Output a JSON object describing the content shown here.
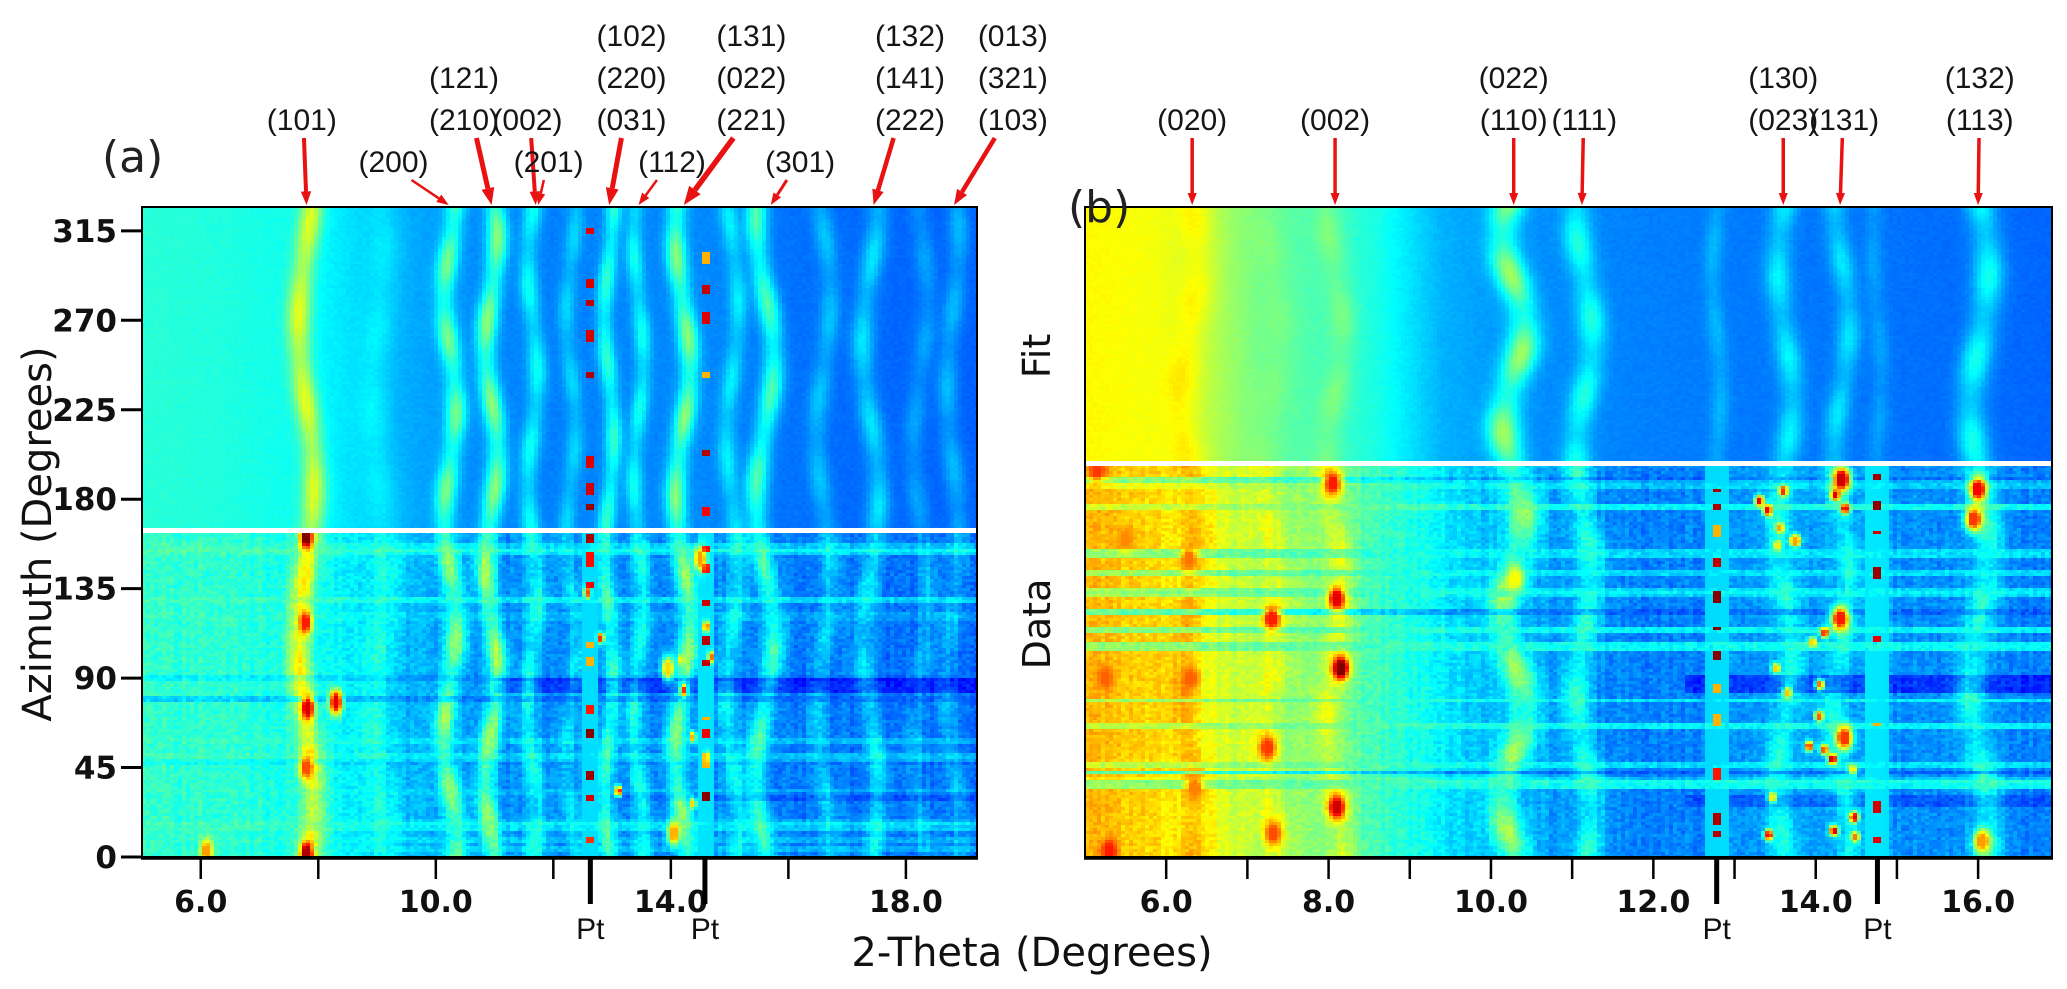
{
  "figure": {
    "panel_a_label": "(a)",
    "panel_b_label": "(b)",
    "x_axis_title": "2-Theta (Degrees)",
    "y_axis_title": "Azimuth (Degrees)",
    "fit_label": "Fit",
    "data_label": "Data",
    "pt_label": "Pt",
    "colors": {
      "arrow": "#e81212",
      "divider": "#ffffff",
      "axis": "#000000",
      "text": "#111111"
    }
  },
  "y_axis": {
    "ticks": [
      {
        "az": 0,
        "label": "0"
      },
      {
        "az": 45,
        "label": "45"
      },
      {
        "az": 90,
        "label": "90"
      },
      {
        "az": 135,
        "label": "135"
      },
      {
        "az": 180,
        "label": "180"
      },
      {
        "az": 225,
        "label": "225"
      },
      {
        "az": 270,
        "label": "270"
      },
      {
        "az": 315,
        "label": "315"
      }
    ],
    "az_max": 327
  },
  "chart_data": [
    {
      "id": "a",
      "type": "heatmap",
      "panel_label": "(a)",
      "x_range": [
        5.0,
        19.21
      ],
      "x_ticks_labeled": [
        [
          6,
          "6.0"
        ],
        [
          10,
          "10.0"
        ],
        [
          14,
          "14.0"
        ],
        [
          18,
          "18.0"
        ]
      ],
      "x_ticks_minor": [
        8,
        12,
        16
      ],
      "divider_azimuth": 164.5,
      "pt_marks": [
        12.63,
        14.58
      ],
      "annotations": [
        {
          "lines": [
            "(101)"
          ],
          "row": 3,
          "label_t": 7.72,
          "tip_t": 7.8,
          "w": 4
        },
        {
          "lines": [
            "(200)"
          ],
          "row": 4,
          "label_t": 9.28,
          "tip_t": 10.22,
          "w": 2.5
        },
        {
          "lines": [
            "(121)",
            "(210)"
          ],
          "row": 2,
          "label_t": 10.48,
          "tip_t": 10.95,
          "w": 5
        },
        {
          "lines": [
            "(002)"
          ],
          "row": 3,
          "label_t": 11.56,
          "tip_t": 11.7,
          "w": 4
        },
        {
          "lines": [
            "(201)"
          ],
          "row": 4,
          "label_t": 11.92,
          "tip_t": 11.74,
          "w": 2.5
        },
        {
          "lines": [
            "(102)",
            "(220)",
            "(031)"
          ],
          "row": 1,
          "label_t": 13.33,
          "tip_t": 12.95,
          "w": 5
        },
        {
          "lines": [
            "(112)"
          ],
          "row": 4,
          "label_t": 14.02,
          "tip_t": 13.45,
          "w": 2.5
        },
        {
          "lines": [
            "(131)",
            "(022)",
            "(221)"
          ],
          "row": 1,
          "label_t": 15.37,
          "tip_t": 14.22,
          "w": 5.5
        },
        {
          "lines": [
            "(301)"
          ],
          "row": 4,
          "label_t": 16.2,
          "tip_t": 15.7,
          "w": 3
        },
        {
          "lines": [
            "(132)",
            "(141)",
            "(222)"
          ],
          "row": 1,
          "label_t": 18.07,
          "tip_t": 17.45,
          "w": 4.5
        },
        {
          "lines": [
            "(013)",
            "(321)",
            "(103)"
          ],
          "row": 1,
          "label_t": 19.82,
          "tip_t": 18.82,
          "w": 4.5
        }
      ],
      "heat": {
        "seed": 20240501,
        "bg_fit": [
          [
            5.0,
            0.415
          ],
          [
            6.5,
            0.405
          ],
          [
            7.5,
            0.39
          ],
          [
            8.4,
            0.355
          ],
          [
            9.3,
            0.3
          ],
          [
            10.6,
            0.265
          ],
          [
            11.8,
            0.25
          ],
          [
            13.2,
            0.255
          ],
          [
            14.6,
            0.26
          ],
          [
            15.8,
            0.24
          ],
          [
            17.0,
            0.23
          ],
          [
            19.21,
            0.22
          ]
        ],
        "bg_data": [
          [
            5.0,
            0.425
          ],
          [
            6.5,
            0.415
          ],
          [
            7.5,
            0.4
          ],
          [
            8.4,
            0.365
          ],
          [
            9.3,
            0.31
          ],
          [
            10.6,
            0.275
          ],
          [
            11.8,
            0.26
          ],
          [
            13.2,
            0.265
          ],
          [
            14.6,
            0.27
          ],
          [
            15.8,
            0.25
          ],
          [
            17.0,
            0.24
          ],
          [
            19.21,
            0.225
          ]
        ],
        "peaks": [
          {
            "t": 7.8,
            "sig": 0.14,
            "fv": 0.19,
            "dv": 0.21,
            "amp": 0.13,
            "per": 160,
            "ph": 0.5,
            "blob": 0.3,
            "bper": 45
          },
          {
            "t": 9.05,
            "sig": 0.2,
            "fv": 0.04,
            "dv": 0.07,
            "amp": 0.1,
            "per": 160,
            "ph": 2.0,
            "blob": 0.3,
            "bper": 40
          },
          {
            "t": 10.25,
            "sig": 0.12,
            "fv": 0.17,
            "dv": 0.19,
            "amp": 0.1,
            "per": 110,
            "ph": 1.2,
            "blob": 0.55,
            "bper": 38
          },
          {
            "t": 10.95,
            "sig": 0.12,
            "fv": 0.2,
            "dv": 0.22,
            "amp": 0.1,
            "per": 110,
            "ph": 2.6,
            "blob": 0.5,
            "bper": 42
          },
          {
            "t": 11.65,
            "sig": 0.11,
            "fv": 0.11,
            "dv": 0.12,
            "amp": 0.08,
            "per": 110,
            "ph": 0.3,
            "blob": 0.5,
            "bper": 40
          },
          {
            "t": 12.3,
            "sig": 0.1,
            "fv": 0.07,
            "dv": 0.08,
            "amp": 0.08,
            "per": 110,
            "ph": 1.8,
            "blob": 0.5,
            "bper": 36
          },
          {
            "t": 12.95,
            "sig": 0.1,
            "fv": 0.14,
            "dv": 0.15,
            "amp": 0.08,
            "per": 120,
            "ph": 3.1,
            "blob": 0.45,
            "bper": 40
          },
          {
            "t": 13.45,
            "sig": 0.1,
            "fv": 0.11,
            "dv": 0.12,
            "amp": 0.08,
            "per": 120,
            "ph": 1.0,
            "blob": 0.5,
            "bper": 38
          },
          {
            "t": 14.2,
            "sig": 0.12,
            "fv": 0.2,
            "dv": 0.21,
            "amp": 0.12,
            "per": 130,
            "ph": 2.2,
            "blob": 0.5,
            "bper": 40
          },
          {
            "t": 15.05,
            "sig": 0.11,
            "fv": 0.09,
            "dv": 0.1,
            "amp": 0.1,
            "per": 130,
            "ph": 0.8,
            "blob": 0.5,
            "bper": 40
          },
          {
            "t": 15.6,
            "sig": 0.13,
            "fv": 0.17,
            "dv": 0.17,
            "amp": 0.15,
            "per": 140,
            "ph": 2.9,
            "blob": 0.45,
            "bper": 44
          },
          {
            "t": 16.6,
            "sig": 0.12,
            "fv": 0.07,
            "dv": 0.08,
            "amp": 0.12,
            "per": 140,
            "ph": 1.5,
            "blob": 0.5,
            "bper": 40
          },
          {
            "t": 17.4,
            "sig": 0.13,
            "fv": 0.1,
            "dv": 0.1,
            "amp": 0.14,
            "per": 150,
            "ph": 0.2,
            "blob": 0.5,
            "bper": 42
          },
          {
            "t": 18.25,
            "sig": 0.12,
            "fv": 0.05,
            "dv": 0.06,
            "amp": 0.12,
            "per": 150,
            "ph": 2.4,
            "blob": 0.5,
            "bper": 40
          },
          {
            "t": 18.8,
            "sig": 0.12,
            "fv": 0.07,
            "dv": 0.07,
            "amp": 0.1,
            "per": 150,
            "ph": 1.1,
            "blob": 0.5,
            "bper": 40
          }
        ],
        "pt_cols": [
          {
            "t": 12.63,
            "fit_dens": 0.5,
            "data_dens": 0.62
          },
          {
            "t": 14.58,
            "fit_dens": 0.38,
            "data_dens": 0.55
          }
        ],
        "spots": [
          {
            "t": 7.8,
            "az": 161,
            "v": 1.0
          },
          {
            "t": 7.8,
            "az": 2,
            "v": 0.95
          },
          {
            "t": 7.82,
            "az": 75,
            "v": 0.92
          },
          {
            "t": 7.78,
            "az": 118,
            "v": 0.85
          },
          {
            "t": 7.8,
            "az": 45,
            "v": 0.8
          },
          {
            "t": 6.1,
            "az": 3,
            "v": 0.72
          },
          {
            "t": 8.3,
            "az": 78,
            "v": 0.9
          },
          {
            "t": 14.05,
            "az": 12,
            "v": 0.7
          },
          {
            "t": 14.5,
            "az": 150,
            "v": 0.72
          },
          {
            "t": 13.95,
            "az": 95,
            "v": 0.66
          }
        ],
        "specks": {
          "n": 10,
          "t0": 12.4,
          "t1": 14.7,
          "v0": 0.6,
          "v1": 0.85
        },
        "dark": [
          {
            "az": 86,
            "hw": 4,
            "t0": 11.0,
            "dv": -0.085
          },
          {
            "az": 30,
            "hw": 2.5,
            "t0": 13.0,
            "dv": -0.04
          }
        ],
        "streaks_n": 14,
        "streak_k": 0.28
      }
    },
    {
      "id": "b",
      "type": "heatmap",
      "panel_label": "(b)",
      "x_range": [
        5.0,
        16.91
      ],
      "x_ticks_labeled": [
        [
          6,
          "6.0"
        ],
        [
          8,
          "8.0"
        ],
        [
          10,
          "10.0"
        ],
        [
          12,
          "12.0"
        ],
        [
          14,
          "14.0"
        ],
        [
          16,
          "16.0"
        ]
      ],
      "x_ticks_minor": [
        7,
        9,
        11,
        13,
        15
      ],
      "divider_azimuth": 198.2,
      "pt_marks": [
        12.78,
        14.76
      ],
      "annotations": [
        {
          "lines": [
            "(020)"
          ],
          "row": 3,
          "label_t": 6.32,
          "tip_t": 6.32,
          "w": 3.5
        },
        {
          "lines": [
            "(002)"
          ],
          "row": 3,
          "label_t": 8.08,
          "tip_t": 8.08,
          "w": 3.5
        },
        {
          "lines": [
            "(022)",
            "(110)"
          ],
          "row": 2,
          "label_t": 10.28,
          "tip_t": 10.28,
          "w": 3.5
        },
        {
          "lines": [
            "(111)"
          ],
          "row": 3,
          "label_t": 11.15,
          "tip_t": 11.12,
          "w": 3.5
        },
        {
          "lines": [
            "(130)",
            "(023)"
          ],
          "row": 2,
          "label_t": 13.6,
          "tip_t": 13.6,
          "w": 3.5
        },
        {
          "lines": [
            "(131)"
          ],
          "row": 3,
          "label_t": 14.35,
          "tip_t": 14.3,
          "w": 3.5
        },
        {
          "lines": [
            "(132)",
            "(113)"
          ],
          "row": 2,
          "label_t": 16.02,
          "tip_t": 16.0,
          "w": 3.5
        }
      ],
      "heat": {
        "seed": 777123,
        "bg_fit": [
          [
            5.0,
            0.63
          ],
          [
            5.9,
            0.615
          ],
          [
            6.6,
            0.55
          ],
          [
            7.2,
            0.48
          ],
          [
            8.0,
            0.44
          ],
          [
            8.6,
            0.4
          ],
          [
            9.4,
            0.3
          ],
          [
            10.2,
            0.27
          ],
          [
            11.0,
            0.26
          ],
          [
            12.0,
            0.25
          ],
          [
            13.0,
            0.245
          ],
          [
            14.5,
            0.24
          ],
          [
            16.91,
            0.225
          ]
        ],
        "bg_data": [
          [
            5.0,
            0.7
          ],
          [
            5.8,
            0.66
          ],
          [
            6.5,
            0.6
          ],
          [
            7.3,
            0.54
          ],
          [
            8.2,
            0.48
          ],
          [
            9.0,
            0.4
          ],
          [
            9.8,
            0.32
          ],
          [
            10.8,
            0.28
          ],
          [
            11.8,
            0.25
          ],
          [
            12.8,
            0.26
          ],
          [
            13.8,
            0.285
          ],
          [
            14.9,
            0.27
          ],
          [
            15.9,
            0.26
          ],
          [
            16.91,
            0.245
          ]
        ],
        "peaks": [
          {
            "t": 6.3,
            "sig": 0.15,
            "fv": 0.05,
            "dv": 0.07,
            "amp": 0.1,
            "per": 140,
            "ph": 0.7,
            "blob": 0.4,
            "bper": 40
          },
          {
            "t": 7.3,
            "sig": 0.13,
            "fv": 0.02,
            "dv": 0.06,
            "amp": 0.1,
            "per": 140,
            "ph": 2.2,
            "blob": 0.5,
            "bper": 36
          },
          {
            "t": 8.08,
            "sig": 0.12,
            "fv": 0.05,
            "dv": 0.09,
            "amp": 0.1,
            "per": 130,
            "ph": 1.4,
            "blob": 0.55,
            "bper": 40
          },
          {
            "t": 10.28,
            "sig": 0.14,
            "fv": 0.2,
            "dv": 0.18,
            "amp": 0.13,
            "per": 95,
            "ph": 2.9,
            "blob": 0.6,
            "bper": 40
          },
          {
            "t": 11.15,
            "sig": 0.12,
            "fv": 0.12,
            "dv": 0.12,
            "amp": 0.1,
            "per": 120,
            "ph": 0.4,
            "blob": 0.5,
            "bper": 38
          },
          {
            "t": 12.78,
            "sig": 0.08,
            "fv": 0.05,
            "dv": 0.05,
            "amp": 0.05,
            "per": 120,
            "ph": 1.9,
            "blob": 0.4,
            "bper": 40
          },
          {
            "t": 13.62,
            "sig": 0.11,
            "fv": 0.1,
            "dv": 0.11,
            "amp": 0.09,
            "per": 130,
            "ph": 3.0,
            "blob": 0.5,
            "bper": 40
          },
          {
            "t": 14.32,
            "sig": 0.1,
            "fv": 0.09,
            "dv": 0.1,
            "amp": 0.09,
            "per": 130,
            "ph": 1.2,
            "blob": 0.5,
            "bper": 38
          },
          {
            "t": 14.76,
            "sig": 0.08,
            "fv": 0.04,
            "dv": 0.04,
            "amp": 0.05,
            "per": 130,
            "ph": 2.5,
            "blob": 0.4,
            "bper": 40
          },
          {
            "t": 16.02,
            "sig": 0.13,
            "fv": 0.13,
            "dv": 0.13,
            "amp": 0.11,
            "per": 140,
            "ph": 0.9,
            "blob": 0.5,
            "bper": 42
          }
        ],
        "pt_cols": [
          {
            "t": 12.78,
            "fit_dens": 0.0,
            "data_dens": 0.72
          },
          {
            "t": 14.76,
            "fit_dens": 0.0,
            "data_dens": 0.5
          }
        ],
        "spots": [
          {
            "t": 8.15,
            "az": 95,
            "v": 1.0
          },
          {
            "t": 8.1,
            "az": 25,
            "v": 0.92
          },
          {
            "t": 8.1,
            "az": 130,
            "v": 0.9
          },
          {
            "t": 8.05,
            "az": 188,
            "v": 0.85
          },
          {
            "t": 7.3,
            "az": 120,
            "v": 0.85
          },
          {
            "t": 7.25,
            "az": 55,
            "v": 0.82
          },
          {
            "t": 7.32,
            "az": 12,
            "v": 0.8
          },
          {
            "t": 6.3,
            "az": 90,
            "v": 0.78
          },
          {
            "t": 6.28,
            "az": 150,
            "v": 0.76
          },
          {
            "t": 6.35,
            "az": 35,
            "v": 0.75
          },
          {
            "t": 5.3,
            "az": 3,
            "v": 0.85
          },
          {
            "t": 5.25,
            "az": 90,
            "v": 0.78
          },
          {
            "t": 5.15,
            "az": 195,
            "v": 0.82
          },
          {
            "t": 5.5,
            "az": 160,
            "v": 0.74
          },
          {
            "t": 14.32,
            "az": 190,
            "v": 0.92
          },
          {
            "t": 14.3,
            "az": 120,
            "v": 0.85
          },
          {
            "t": 14.35,
            "az": 60,
            "v": 0.82
          },
          {
            "t": 16.0,
            "az": 185,
            "v": 0.88
          },
          {
            "t": 15.95,
            "az": 170,
            "v": 0.82
          },
          {
            "t": 16.05,
            "az": 8,
            "v": 0.72
          },
          {
            "t": 10.3,
            "az": 140,
            "v": 0.62
          }
        ],
        "specks": {
          "n": 24,
          "t0": 13.2,
          "t1": 14.6,
          "v0": 0.62,
          "v1": 0.92
        },
        "dark": [
          {
            "az": 87,
            "hw": 4,
            "t0": 12.4,
            "dv": -0.09
          },
          {
            "az": 28,
            "hw": 3,
            "t0": 12.4,
            "dv": -0.05
          }
        ],
        "streaks_n": 16,
        "streak_k": 0.45
      }
    }
  ]
}
